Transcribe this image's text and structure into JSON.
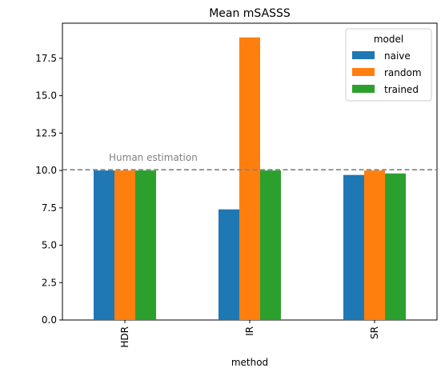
{
  "chart_data": {
    "type": "bar",
    "title": "Mean mSASSS",
    "xlabel": "method",
    "ylabel": "",
    "categories": [
      "HDR",
      "IR",
      "SR"
    ],
    "series": [
      {
        "name": "naive",
        "color": "#1f77b4",
        "values": [
          10.0,
          7.4,
          9.7
        ]
      },
      {
        "name": "random",
        "color": "#ff7f0e",
        "values": [
          10.0,
          18.9,
          10.0
        ]
      },
      {
        "name": "trained",
        "color": "#2ca02c",
        "values": [
          10.0,
          10.0,
          9.8
        ]
      }
    ],
    "ylim": [
      0,
      19.85
    ],
    "yticks": [
      0.0,
      2.5,
      5.0,
      7.5,
      10.0,
      12.5,
      15.0,
      17.5
    ],
    "ytick_labels": [
      "0.0",
      "2.5",
      "5.0",
      "7.5",
      "10.0",
      "12.5",
      "15.0",
      "17.5"
    ],
    "reference_line": {
      "value": 10.05,
      "label": "Human estimation",
      "color": "#808080",
      "style": "dashed"
    },
    "legend": {
      "title": "model",
      "placement": "top-right"
    },
    "grid": false
  }
}
